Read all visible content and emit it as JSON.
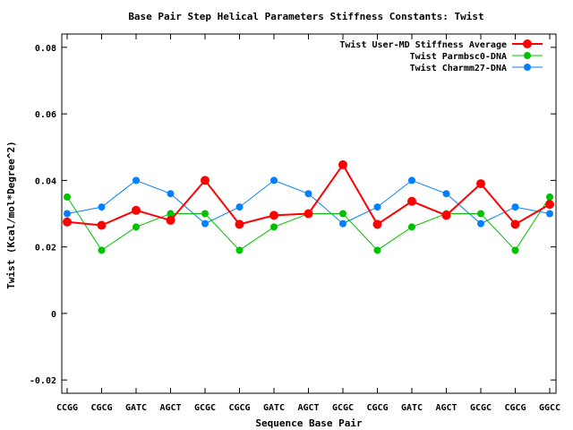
{
  "chart_data": {
    "type": "line",
    "title": "Base Pair Step Helical Parameters Stiffness Constants: Twist",
    "xlabel": "Sequence Base Pair",
    "ylabel": "Twist (Kcal/mol*Degree^2)",
    "ylim": [
      -0.024,
      0.084
    ],
    "yticks": [
      -0.02,
      0,
      0.02,
      0.04,
      0.06,
      0.08
    ],
    "ytick_labels": [
      "-0.02",
      "0",
      "0.02",
      "0.04",
      "0.06",
      "0.08"
    ],
    "categories": [
      "CCGG",
      "CGCG",
      "GATC",
      "AGCT",
      "GCGC",
      "CGCG",
      "GATC",
      "AGCT",
      "GCGC",
      "CGCG",
      "GATC",
      "AGCT",
      "GCGC",
      "CGCG",
      "GGCC"
    ],
    "legend_position": "top-right",
    "grid": false,
    "series": [
      {
        "name": "Twist User-MD Stiffness Average",
        "color": "#ff0000",
        "values": [
          0.0275,
          0.0265,
          0.031,
          0.028,
          0.04,
          0.0268,
          0.0295,
          0.03,
          0.0447,
          0.0268,
          0.0337,
          0.0295,
          0.039,
          0.0268,
          0.0328
        ]
      },
      {
        "name": "Twist Parmbsc0-DNA",
        "color": "#00c000",
        "values": [
          0.035,
          0.019,
          0.026,
          0.03,
          0.03,
          0.019,
          0.026,
          0.03,
          0.03,
          0.019,
          0.026,
          0.03,
          0.03,
          0.019,
          0.035
        ]
      },
      {
        "name": "Twist Charmm27-DNA",
        "color": "#0080ff",
        "values": [
          0.03,
          0.032,
          0.04,
          0.036,
          0.027,
          0.032,
          0.04,
          0.036,
          0.027,
          0.032,
          0.04,
          0.036,
          0.027,
          0.032,
          0.03
        ]
      }
    ]
  }
}
